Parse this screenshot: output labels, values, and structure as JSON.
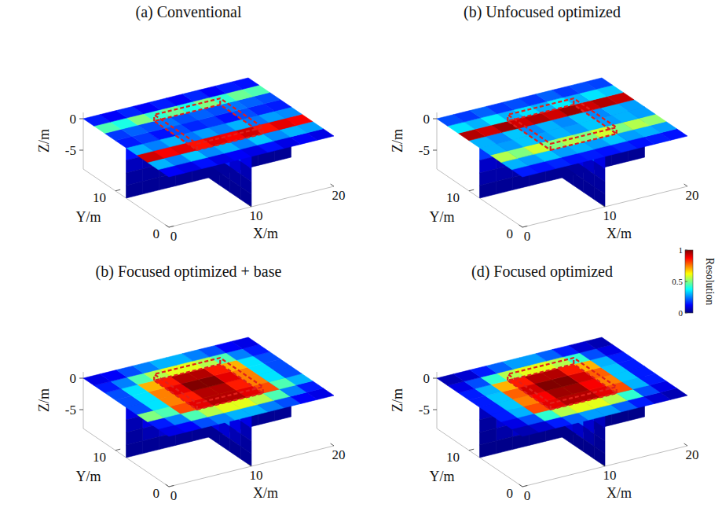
{
  "chart_data": [
    {
      "type": "slice3d",
      "title": "(a) Conventional",
      "xlabel": "X/m",
      "ylabel": "Y/m",
      "zlabel": "Z/m",
      "xlim": [
        0,
        20
      ],
      "ylim": [
        0,
        16
      ],
      "zlim": [
        -8,
        1
      ],
      "xticks": [
        0,
        10,
        20
      ],
      "yticks": [
        0,
        10
      ],
      "zticks": [
        0,
        -5
      ],
      "surface": {
        "z": 0,
        "values": [
          [
            0.12,
            0.1,
            0.14,
            0.1,
            0.12,
            0.1,
            0.14,
            0.1,
            0.12,
            0.1
          ],
          [
            0.3,
            0.25,
            0.32,
            0.26,
            0.3,
            0.25,
            0.32,
            0.26,
            0.3,
            0.28
          ],
          [
            0.92,
            0.88,
            0.9,
            0.86,
            0.9,
            0.88,
            0.92,
            0.86,
            0.9,
            0.88
          ],
          [
            0.3,
            0.25,
            0.3,
            0.24,
            0.28,
            0.25,
            0.3,
            0.24,
            0.28,
            0.26
          ],
          [
            0.15,
            0.18,
            0.14,
            0.2,
            0.16,
            0.18,
            0.14,
            0.2,
            0.16,
            0.15
          ],
          [
            0.18,
            0.22,
            0.2,
            0.24,
            0.2,
            0.22,
            0.2,
            0.24,
            0.22,
            0.2
          ],
          [
            0.45,
            0.4,
            0.5,
            0.42,
            0.48,
            0.4,
            0.5,
            0.42,
            0.48,
            0.45
          ],
          [
            0.15,
            0.12,
            0.16,
            0.12,
            0.15,
            0.12,
            0.16,
            0.12,
            0.15,
            0.14
          ]
        ]
      },
      "slice_xz": {
        "y": 8,
        "values": [
          [
            0.14,
            0.12,
            0.15,
            0.12,
            0.14,
            0.12,
            0.15,
            0.12,
            0.14,
            0.12
          ],
          [
            0.06,
            0.05,
            0.06,
            0.05,
            0.06,
            0.05,
            0.06,
            0.05,
            0.06,
            0.05
          ],
          [
            0.03,
            0.03,
            0.03,
            0.03,
            0.03,
            0.03,
            0.03,
            0.03,
            0.03,
            0.03
          ],
          [
            0.02,
            0.02,
            0.02,
            0.02,
            0.02,
            0.02,
            0.02,
            0.02,
            0.02,
            0.02
          ]
        ]
      },
      "slice_yz": {
        "x": 10,
        "values": [
          [
            0.1,
            0.2,
            0.5,
            0.2,
            0.12,
            0.15,
            0.3,
            0.1
          ],
          [
            0.05,
            0.08,
            0.15,
            0.08,
            0.05,
            0.06,
            0.1,
            0.05
          ],
          [
            0.03,
            0.03,
            0.03,
            0.03,
            0.03,
            0.03,
            0.03,
            0.03
          ],
          [
            0.02,
            0.02,
            0.02,
            0.02,
            0.02,
            0.02,
            0.02,
            0.02
          ]
        ]
      },
      "focus_region": {
        "x": [
          6,
          14
        ],
        "y": [
          4,
          12
        ]
      }
    },
    {
      "type": "slice3d",
      "title": "(b) Unfocused optimized",
      "xlabel": "X/m",
      "ylabel": "Y/m",
      "zlabel": "Z/m",
      "xlim": [
        0,
        20
      ],
      "ylim": [
        0,
        16
      ],
      "zlim": [
        -8,
        1
      ],
      "xticks": [
        0,
        10,
        20
      ],
      "yticks": [
        0,
        10
      ],
      "zticks": [
        0,
        -5
      ],
      "surface": {
        "z": 0,
        "values": [
          [
            0.15,
            0.14,
            0.16,
            0.14,
            0.15,
            0.14,
            0.16,
            0.14,
            0.15,
            0.14
          ],
          [
            0.3,
            0.28,
            0.32,
            0.28,
            0.3,
            0.28,
            0.32,
            0.28,
            0.3,
            0.28
          ],
          [
            0.55,
            0.5,
            0.58,
            0.5,
            0.55,
            0.5,
            0.58,
            0.5,
            0.55,
            0.52
          ],
          [
            0.3,
            0.28,
            0.32,
            0.28,
            0.3,
            0.28,
            0.32,
            0.28,
            0.3,
            0.28
          ],
          [
            0.3,
            0.26,
            0.32,
            0.26,
            0.3,
            0.26,
            0.32,
            0.26,
            0.3,
            0.28
          ],
          [
            0.95,
            0.92,
            0.97,
            0.92,
            0.95,
            0.92,
            0.97,
            0.92,
            0.95,
            0.93
          ],
          [
            0.35,
            0.3,
            0.36,
            0.3,
            0.35,
            0.3,
            0.36,
            0.3,
            0.35,
            0.32
          ],
          [
            0.2,
            0.18,
            0.22,
            0.18,
            0.2,
            0.18,
            0.22,
            0.18,
            0.2,
            0.19
          ]
        ]
      },
      "slice_xz": {
        "y": 8,
        "values": [
          [
            0.18,
            0.16,
            0.19,
            0.16,
            0.18,
            0.16,
            0.19,
            0.16,
            0.18,
            0.16
          ],
          [
            0.07,
            0.06,
            0.07,
            0.06,
            0.07,
            0.06,
            0.07,
            0.06,
            0.07,
            0.06
          ],
          [
            0.04,
            0.04,
            0.04,
            0.04,
            0.04,
            0.04,
            0.04,
            0.04,
            0.04,
            0.04
          ],
          [
            0.02,
            0.02,
            0.02,
            0.02,
            0.02,
            0.02,
            0.02,
            0.02,
            0.02,
            0.02
          ]
        ]
      },
      "slice_yz": {
        "x": 10,
        "values": [
          [
            0.1,
            0.2,
            0.3,
            0.2,
            0.2,
            0.5,
            0.2,
            0.12
          ],
          [
            0.05,
            0.07,
            0.1,
            0.07,
            0.07,
            0.15,
            0.08,
            0.05
          ],
          [
            0.03,
            0.03,
            0.03,
            0.03,
            0.03,
            0.03,
            0.03,
            0.03
          ],
          [
            0.02,
            0.02,
            0.02,
            0.02,
            0.02,
            0.02,
            0.02,
            0.02
          ]
        ]
      },
      "focus_region": {
        "x": [
          6,
          14
        ],
        "y": [
          4,
          12
        ]
      }
    },
    {
      "type": "slice3d",
      "title": "(b) Focused optimized + base",
      "xlabel": "X/m",
      "ylabel": "Y/m",
      "zlabel": "Z/m",
      "xlim": [
        0,
        20
      ],
      "ylim": [
        0,
        16
      ],
      "zlim": [
        -8,
        1
      ],
      "xticks": [
        0,
        10,
        20
      ],
      "yticks": [
        0,
        10
      ],
      "zticks": [
        0,
        -5
      ],
      "surface": {
        "z": 0,
        "values": [
          [
            0.1,
            0.12,
            0.2,
            0.25,
            0.3,
            0.3,
            0.25,
            0.2,
            0.12,
            0.1
          ],
          [
            0.15,
            0.25,
            0.45,
            0.55,
            0.6,
            0.6,
            0.55,
            0.45,
            0.25,
            0.15
          ],
          [
            0.5,
            0.45,
            0.8,
            0.9,
            0.95,
            0.95,
            0.9,
            0.8,
            0.45,
            0.3
          ],
          [
            0.2,
            0.35,
            0.75,
            0.85,
            0.95,
            0.95,
            0.85,
            0.75,
            0.35,
            0.2
          ],
          [
            0.2,
            0.35,
            0.75,
            0.9,
            1,
            1,
            0.9,
            0.75,
            0.35,
            0.2
          ],
          [
            0.2,
            0.35,
            0.7,
            0.85,
            0.95,
            0.95,
            0.85,
            0.7,
            0.35,
            0.2
          ],
          [
            0.15,
            0.25,
            0.45,
            0.55,
            0.6,
            0.6,
            0.55,
            0.45,
            0.25,
            0.15
          ],
          [
            0.1,
            0.12,
            0.2,
            0.25,
            0.3,
            0.3,
            0.25,
            0.2,
            0.12,
            0.1
          ]
        ]
      },
      "slice_xz": {
        "y": 8,
        "values": [
          [
            0.1,
            0.2,
            0.5,
            0.6,
            0.65,
            0.65,
            0.6,
            0.5,
            0.2,
            0.1
          ],
          [
            0.05,
            0.1,
            0.25,
            0.3,
            0.35,
            0.35,
            0.3,
            0.25,
            0.1,
            0.05
          ],
          [
            0.03,
            0.05,
            0.08,
            0.1,
            0.12,
            0.12,
            0.1,
            0.08,
            0.05,
            0.03
          ],
          [
            0.02,
            0.02,
            0.02,
            0.02,
            0.02,
            0.02,
            0.02,
            0.02,
            0.02,
            0.02
          ]
        ]
      },
      "slice_yz": {
        "x": 10,
        "values": [
          [
            0.1,
            0.2,
            0.55,
            0.6,
            0.65,
            0.6,
            0.3,
            0.12
          ],
          [
            0.05,
            0.1,
            0.25,
            0.3,
            0.32,
            0.3,
            0.12,
            0.05
          ],
          [
            0.03,
            0.05,
            0.08,
            0.1,
            0.12,
            0.1,
            0.05,
            0.03
          ],
          [
            0.02,
            0.02,
            0.02,
            0.02,
            0.02,
            0.02,
            0.02,
            0.02
          ]
        ]
      },
      "focus_region": {
        "x": [
          6,
          14
        ],
        "y": [
          4,
          12
        ]
      }
    },
    {
      "type": "slice3d",
      "title": "(d) Focused optimized",
      "xlabel": "X/m",
      "ylabel": "Y/m",
      "zlabel": "Z/m",
      "xlim": [
        0,
        20
      ],
      "ylim": [
        0,
        16
      ],
      "zlim": [
        -8,
        1
      ],
      "xticks": [
        0,
        10,
        20
      ],
      "yticks": [
        0,
        10
      ],
      "zticks": [
        0,
        -5
      ],
      "surface": {
        "z": 0,
        "values": [
          [
            0.05,
            0.08,
            0.15,
            0.22,
            0.28,
            0.28,
            0.22,
            0.15,
            0.08,
            0.05
          ],
          [
            0.1,
            0.2,
            0.42,
            0.55,
            0.6,
            0.6,
            0.55,
            0.42,
            0.2,
            0.1
          ],
          [
            0.15,
            0.3,
            0.8,
            0.9,
            0.95,
            0.95,
            0.9,
            0.8,
            0.3,
            0.15
          ],
          [
            0.15,
            0.32,
            0.75,
            0.88,
            0.97,
            0.97,
            0.88,
            0.75,
            0.32,
            0.15
          ],
          [
            0.15,
            0.32,
            0.78,
            0.92,
            1,
            1,
            0.92,
            0.78,
            0.32,
            0.15
          ],
          [
            0.15,
            0.3,
            0.7,
            0.85,
            0.95,
            0.95,
            0.85,
            0.7,
            0.3,
            0.15
          ],
          [
            0.1,
            0.2,
            0.42,
            0.55,
            0.6,
            0.6,
            0.55,
            0.42,
            0.2,
            0.1
          ],
          [
            0.05,
            0.08,
            0.15,
            0.22,
            0.28,
            0.28,
            0.22,
            0.15,
            0.08,
            0.05
          ]
        ]
      },
      "slice_xz": {
        "y": 8,
        "values": [
          [
            0.06,
            0.15,
            0.45,
            0.58,
            0.62,
            0.62,
            0.58,
            0.45,
            0.15,
            0.06
          ],
          [
            0.03,
            0.08,
            0.22,
            0.28,
            0.32,
            0.32,
            0.28,
            0.22,
            0.08,
            0.03
          ],
          [
            0.02,
            0.04,
            0.07,
            0.09,
            0.1,
            0.1,
            0.09,
            0.07,
            0.04,
            0.02
          ],
          [
            0.01,
            0.01,
            0.01,
            0.01,
            0.01,
            0.01,
            0.01,
            0.01,
            0.01,
            0.01
          ]
        ]
      },
      "slice_yz": {
        "x": 10,
        "values": [
          [
            0.06,
            0.15,
            0.5,
            0.58,
            0.62,
            0.58,
            0.2,
            0.08
          ],
          [
            0.03,
            0.08,
            0.22,
            0.28,
            0.3,
            0.28,
            0.1,
            0.03
          ],
          [
            0.02,
            0.04,
            0.07,
            0.09,
            0.1,
            0.09,
            0.04,
            0.02
          ],
          [
            0.01,
            0.01,
            0.01,
            0.01,
            0.01,
            0.01,
            0.01,
            0.01
          ]
        ]
      },
      "focus_region": {
        "x": [
          6,
          14
        ],
        "y": [
          4,
          12
        ]
      }
    }
  ],
  "colorbar": {
    "label": "Resolution",
    "range": [
      0,
      1
    ],
    "ticks": [
      0,
      0.5,
      1
    ]
  }
}
